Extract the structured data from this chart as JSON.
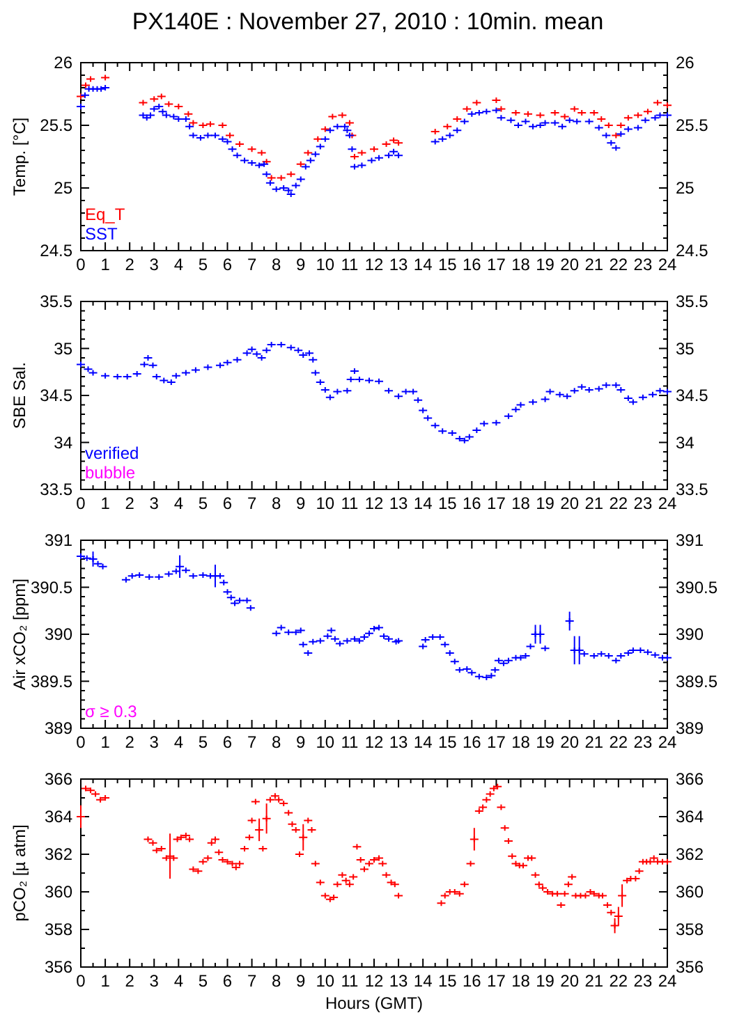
{
  "chart_data": [
    {
      "type": "scatter",
      "title": "PX140E : November 27, 2010 : 10min. mean",
      "ylabel": "Temp. [°C]",
      "xlim": [
        0,
        24
      ],
      "xticks": [
        0,
        {
          "value": 0.5,
          "label": null
        },
        1,
        {
          "value": 1.5,
          "label": null
        },
        2,
        {
          "value": 2.5,
          "label": null
        },
        3,
        {
          "value": 3.5,
          "label": null
        },
        4,
        {
          "value": 4.5,
          "label": null
        },
        5,
        {
          "value": 5.5,
          "label": null
        },
        6,
        {
          "value": 6.5,
          "label": null
        },
        7,
        {
          "value": 7.5,
          "label": null
        },
        8,
        {
          "value": 8.5,
          "label": null
        },
        9,
        {
          "value": 9.5,
          "label": null
        },
        10,
        {
          "value": 10.5,
          "label": null
        },
        11,
        {
          "value": 11.5,
          "label": null
        },
        12,
        {
          "value": 12.5,
          "label": null
        },
        13,
        {
          "value": 13.5,
          "label": null
        },
        14,
        {
          "value": 14.5,
          "label": null
        },
        15,
        {
          "value": 15.5,
          "label": null
        },
        16,
        {
          "value": 16.5,
          "label": null
        },
        17,
        {
          "value": 17.5,
          "label": null
        },
        18,
        {
          "value": 18.5,
          "label": null
        },
        19,
        {
          "value": 19.5,
          "label": null
        },
        20,
        {
          "value": 20.5,
          "label": null
        },
        21,
        {
          "value": 21.5,
          "label": null
        },
        22,
        {
          "value": 22.5,
          "label": null
        },
        23,
        {
          "value": 23.5,
          "label": null
        },
        24
      ],
      "ylim": [
        24.5,
        26
      ],
      "yticks": [
        24.5,
        {
          "value": 24.6,
          "label": null
        },
        {
          "value": 24.7,
          "label": null
        },
        {
          "value": 24.8,
          "label": null
        },
        {
          "value": 24.9,
          "label": null
        },
        25,
        {
          "value": 25.1,
          "label": null
        },
        {
          "value": 25.2,
          "label": null
        },
        {
          "value": 25.3,
          "label": null
        },
        {
          "value": 25.4,
          "label": null
        },
        25.5,
        {
          "value": 25.6,
          "label": null
        },
        {
          "value": 25.7,
          "label": null
        },
        {
          "value": 25.8,
          "label": null
        },
        {
          "value": 25.9,
          "label": null
        },
        26
      ],
      "y2lim": [
        24.5,
        26
      ],
      "y2ticks": [
        24.5,
        25,
        25.5,
        26
      ],
      "marker": "cross",
      "legend": "bottom left",
      "series": [
        {
          "name": "Eq_T",
          "color": "#ff0000",
          "x": [
            0,
            0.2,
            0.4,
            1,
            2.55,
            3,
            3.3,
            3.6,
            4,
            4.4,
            4.6,
            5,
            5.3,
            5.8,
            6.1,
            6.5,
            7,
            7.4,
            7.6,
            7.8,
            8.2,
            8.6,
            9,
            9.3,
            9.7,
            10,
            10.3,
            10.7,
            11,
            11.1,
            11.2,
            11.5,
            12,
            12.5,
            12.8,
            13,
            14.5,
            15,
            15.4,
            15.8,
            16.2,
            17,
            17.2,
            17.8,
            18.3,
            18.8,
            19.4,
            19.8,
            20.2,
            20.5,
            21,
            21.3,
            21.6,
            21.9,
            22.1,
            22.4,
            22.8,
            23.2,
            23.6,
            24
          ],
          "values": [
            25.73,
            25.82,
            25.87,
            25.88,
            25.68,
            25.71,
            25.73,
            25.67,
            25.65,
            25.59,
            25.52,
            25.5,
            25.51,
            25.5,
            25.42,
            25.35,
            25.31,
            25.28,
            25.21,
            25.08,
            25.08,
            25.11,
            25.19,
            25.28,
            25.39,
            25.47,
            25.57,
            25.58,
            25.52,
            25.42,
            25.25,
            25.28,
            25.31,
            25.35,
            25.38,
            25.36,
            25.45,
            25.49,
            25.55,
            25.63,
            25.68,
            25.7,
            25.63,
            25.6,
            25.59,
            25.58,
            25.6,
            25.57,
            25.63,
            25.6,
            25.6,
            25.55,
            25.5,
            25.42,
            25.5,
            25.56,
            25.58,
            25.61,
            25.68,
            25.66
          ]
        },
        {
          "name": "SST",
          "color": "#0000ff",
          "x": [
            0,
            0.17,
            0.33,
            0.5,
            0.67,
            0.83,
            1,
            2.55,
            2.7,
            2.85,
            3,
            3.2,
            3.35,
            3.5,
            3.8,
            4,
            4.3,
            4.45,
            4.6,
            4.9,
            5.2,
            5.5,
            5.8,
            6,
            6.2,
            6.4,
            6.7,
            7,
            7.3,
            7.5,
            7.6,
            7.75,
            8,
            8.3,
            8.5,
            8.6,
            8.8,
            9,
            9.2,
            9.4,
            9.6,
            9.8,
            10,
            10.2,
            10.5,
            10.8,
            10.9,
            11,
            11.1,
            11.2,
            11.5,
            11.9,
            12.2,
            12.6,
            12.8,
            13,
            14.5,
            14.8,
            15.1,
            15.4,
            15.7,
            16,
            16.3,
            16.6,
            17,
            17.2,
            17.6,
            17.9,
            18.2,
            18.5,
            18.8,
            19,
            19.4,
            19.7,
            20,
            20.3,
            20.8,
            21.2,
            21.5,
            21.7,
            21.9,
            22.1,
            22.4,
            22.8,
            23.1,
            23.5,
            23.7,
            24
          ],
          "values": [
            25.65,
            25.74,
            25.79,
            25.79,
            25.79,
            25.79,
            25.8,
            25.58,
            25.56,
            25.58,
            25.63,
            25.65,
            25.61,
            25.58,
            25.57,
            25.55,
            25.55,
            25.49,
            25.42,
            25.4,
            25.42,
            25.42,
            25.39,
            25.37,
            25.31,
            25.26,
            25.22,
            25.2,
            25.18,
            25.19,
            25.11,
            25.04,
            24.99,
            25,
            24.98,
            24.95,
            25.02,
            25.07,
            25.17,
            25.22,
            25.27,
            25.33,
            25.39,
            25.46,
            25.49,
            25.49,
            25.46,
            25.42,
            25.31,
            25.17,
            25.18,
            25.22,
            25.24,
            25.26,
            25.29,
            25.26,
            25.37,
            25.39,
            25.42,
            25.46,
            25.53,
            25.59,
            25.6,
            25.61,
            25.62,
            25.56,
            25.54,
            25.5,
            25.53,
            25.49,
            25.5,
            25.52,
            25.52,
            25.49,
            25.54,
            25.53,
            25.53,
            25.48,
            25.42,
            25.36,
            25.32,
            25.43,
            25.47,
            25.48,
            25.54,
            25.56,
            25.58,
            25.58
          ]
        }
      ]
    },
    {
      "type": "scatter",
      "ylabel": "SBE Sal.",
      "xlim": [
        0,
        24
      ],
      "xticks": [
        0,
        {
          "value": 0.5,
          "label": null
        },
        1,
        {
          "value": 1.5,
          "label": null
        },
        2,
        {
          "value": 2.5,
          "label": null
        },
        3,
        {
          "value": 3.5,
          "label": null
        },
        4,
        {
          "value": 4.5,
          "label": null
        },
        5,
        {
          "value": 5.5,
          "label": null
        },
        6,
        {
          "value": 6.5,
          "label": null
        },
        7,
        {
          "value": 7.5,
          "label": null
        },
        8,
        {
          "value": 8.5,
          "label": null
        },
        9,
        {
          "value": 9.5,
          "label": null
        },
        10,
        {
          "value": 10.5,
          "label": null
        },
        11,
        {
          "value": 11.5,
          "label": null
        },
        12,
        {
          "value": 12.5,
          "label": null
        },
        13,
        {
          "value": 13.5,
          "label": null
        },
        14,
        {
          "value": 14.5,
          "label": null
        },
        15,
        {
          "value": 15.5,
          "label": null
        },
        16,
        {
          "value": 16.5,
          "label": null
        },
        17,
        {
          "value": 17.5,
          "label": null
        },
        18,
        {
          "value": 18.5,
          "label": null
        },
        19,
        {
          "value": 19.5,
          "label": null
        },
        20,
        {
          "value": 20.5,
          "label": null
        },
        21,
        {
          "value": 21.5,
          "label": null
        },
        22,
        {
          "value": 22.5,
          "label": null
        },
        23,
        {
          "value": 23.5,
          "label": null
        },
        24
      ],
      "ylim": [
        33.5,
        35.5
      ],
      "yticks": [
        33.5,
        {
          "value": 33.6,
          "label": null
        },
        {
          "value": 33.7,
          "label": null
        },
        {
          "value": 33.8,
          "label": null
        },
        {
          "value": 33.9,
          "label": null
        },
        34,
        {
          "value": 34.1,
          "label": null
        },
        {
          "value": 34.2,
          "label": null
        },
        {
          "value": 34.3,
          "label": null
        },
        {
          "value": 34.4,
          "label": null
        },
        34.5,
        {
          "value": 34.6,
          "label": null
        },
        {
          "value": 34.7,
          "label": null
        },
        {
          "value": 34.8,
          "label": null
        },
        {
          "value": 34.9,
          "label": null
        },
        35,
        {
          "value": 35.1,
          "label": null
        },
        {
          "value": 35.2,
          "label": null
        },
        {
          "value": 35.3,
          "label": null
        },
        {
          "value": 35.4,
          "label": null
        },
        35.5
      ],
      "y2lim": [
        33.5,
        35.5
      ],
      "y2ticks": [
        33.5,
        34,
        34.5,
        35,
        35.5
      ],
      "marker": "cross",
      "legend": "bottom left",
      "series": [
        {
          "name": "verified",
          "color": "#0000ff",
          "x": [
            0,
            0.3,
            0.5,
            1,
            1.5,
            1.9,
            2.3,
            2.6,
            2.75,
            2.95,
            3.1,
            3.4,
            3.7,
            3.9,
            4.3,
            4.7,
            5.2,
            5.7,
            6,
            6.4,
            6.8,
            7,
            7.2,
            7.4,
            7.6,
            7.8,
            8.2,
            8.6,
            8.9,
            9.1,
            9.35,
            9.5,
            9.6,
            9.8,
            10,
            10.2,
            10.5,
            10.9,
            11.05,
            11.2,
            11.4,
            11.8,
            12.2,
            12.6,
            13,
            13.3,
            13.6,
            13.8,
            14,
            14.2,
            14.5,
            14.8,
            15.2,
            15.5,
            15.7,
            15.9,
            16.2,
            16.5,
            17,
            17.5,
            17.8,
            18,
            18.5,
            19,
            19.2,
            19.6,
            19.9,
            20.2,
            20.5,
            20.8,
            21.2,
            21.5,
            21.9,
            22.1,
            22.4,
            22.6,
            23,
            23.4,
            23.7,
            24
          ],
          "values": [
            34.83,
            34.78,
            34.74,
            34.71,
            34.7,
            34.7,
            34.73,
            34.83,
            34.9,
            34.82,
            34.7,
            34.66,
            34.64,
            34.71,
            34.74,
            34.77,
            34.8,
            34.82,
            34.85,
            34.88,
            34.95,
            34.99,
            34.94,
            34.9,
            34.98,
            35.04,
            35.04,
            35.01,
            34.98,
            34.93,
            34.95,
            34.88,
            34.74,
            34.64,
            34.56,
            34.48,
            34.54,
            34.55,
            34.67,
            34.76,
            34.67,
            34.66,
            34.65,
            34.55,
            34.49,
            34.54,
            34.54,
            34.45,
            34.34,
            34.26,
            34.18,
            34.12,
            34.1,
            34.04,
            34.02,
            34.06,
            34.13,
            34.2,
            34.21,
            34.28,
            34.35,
            34.4,
            34.43,
            34.46,
            34.54,
            34.51,
            34.49,
            34.55,
            34.59,
            34.56,
            34.57,
            34.61,
            34.61,
            34.56,
            34.47,
            34.43,
            34.48,
            34.51,
            34.55,
            34.54
          ]
        },
        {
          "name": "bubble",
          "color": "#ff00ff"
        }
      ]
    },
    {
      "type": "scatter",
      "ylabel": "Air xCO₂ [ppm]",
      "xlim": [
        0,
        24
      ],
      "xticks": [
        0,
        {
          "value": 0.5,
          "label": null
        },
        1,
        {
          "value": 1.5,
          "label": null
        },
        2,
        {
          "value": 2.5,
          "label": null
        },
        3,
        {
          "value": 3.5,
          "label": null
        },
        4,
        {
          "value": 4.5,
          "label": null
        },
        5,
        {
          "value": 5.5,
          "label": null
        },
        6,
        {
          "value": 6.5,
          "label": null
        },
        7,
        {
          "value": 7.5,
          "label": null
        },
        8,
        {
          "value": 8.5,
          "label": null
        },
        9,
        {
          "value": 9.5,
          "label": null
        },
        10,
        {
          "value": 10.5,
          "label": null
        },
        11,
        {
          "value": 11.5,
          "label": null
        },
        12,
        {
          "value": 12.5,
          "label": null
        },
        13,
        {
          "value": 13.5,
          "label": null
        },
        14,
        {
          "value": 14.5,
          "label": null
        },
        15,
        {
          "value": 15.5,
          "label": null
        },
        16,
        {
          "value": 16.5,
          "label": null
        },
        17,
        {
          "value": 17.5,
          "label": null
        },
        18,
        {
          "value": 18.5,
          "label": null
        },
        19,
        {
          "value": 19.5,
          "label": null
        },
        20,
        {
          "value": 20.5,
          "label": null
        },
        21,
        {
          "value": 21.5,
          "label": null
        },
        22,
        {
          "value": 22.5,
          "label": null
        },
        23,
        {
          "value": 23.5,
          "label": null
        },
        24
      ],
      "ylim": [
        389,
        391
      ],
      "yticks": [
        389,
        {
          "value": 389.1,
          "label": null
        },
        {
          "value": 389.2,
          "label": null
        },
        {
          "value": 389.3,
          "label": null
        },
        {
          "value": 389.4,
          "label": null
        },
        389.5,
        {
          "value": 389.6,
          "label": null
        },
        {
          "value": 389.7,
          "label": null
        },
        {
          "value": 389.8,
          "label": null
        },
        {
          "value": 389.9,
          "label": null
        },
        390,
        {
          "value": 390.1,
          "label": null
        },
        {
          "value": 390.2,
          "label": null
        },
        {
          "value": 390.3,
          "label": null
        },
        {
          "value": 390.4,
          "label": null
        },
        390.5,
        {
          "value": 390.6,
          "label": null
        },
        {
          "value": 390.7,
          "label": null
        },
        {
          "value": 390.8,
          "label": null
        },
        {
          "value": 390.9,
          "label": null
        },
        391
      ],
      "y2lim": [
        389,
        391
      ],
      "y2ticks": [
        389,
        389.5,
        390,
        390.5,
        391
      ],
      "marker": "cross",
      "series": [
        {
          "color": "#0000ff",
          "x": [
            0,
            0.25,
            0.5,
            0.7,
            0.9,
            1.85,
            2.1,
            2.4,
            2.8,
            3.2,
            3.6,
            3.9,
            4.05,
            4.3,
            4.6,
            5,
            5.3,
            5.5,
            5.7,
            5.85,
            6,
            6.15,
            6.3,
            6.5,
            6.8,
            6.95,
            8,
            8.2,
            8.5,
            8.8,
            9,
            9.1,
            9.3,
            9.5,
            9.8,
            10.1,
            10.25,
            10.4,
            10.6,
            10.9,
            11.2,
            11.4,
            11.6,
            11.8,
            12,
            12.2,
            12.4,
            12.6,
            12.9,
            13,
            14,
            14.1,
            14.4,
            14.7,
            14.9,
            15.1,
            15.3,
            15.5,
            15.8,
            16,
            16.3,
            16.6,
            16.8,
            16.95,
            17.1,
            17.3,
            17.5,
            17.8,
            18,
            18.2,
            18.4,
            18.6,
            18.8,
            19,
            20,
            20.2,
            20.4,
            20.6,
            21,
            21.3,
            21.6,
            21.9,
            22.1,
            22.4,
            22.6,
            22.9,
            23.2,
            23.5,
            23.8,
            24
          ],
          "values": [
            390.83,
            390.81,
            390.8,
            390.75,
            390.72,
            390.58,
            390.62,
            390.63,
            390.61,
            390.61,
            390.64,
            390.67,
            390.72,
            390.68,
            390.62,
            390.63,
            390.62,
            390.62,
            390.62,
            390.55,
            390.45,
            390.39,
            390.33,
            390.36,
            390.36,
            390.28,
            390.01,
            390.07,
            390.02,
            390.02,
            390.04,
            389.89,
            389.8,
            389.92,
            389.93,
            389.98,
            390.04,
            389.95,
            389.9,
            389.93,
            389.95,
            389.93,
            389.97,
            390.01,
            390.06,
            390.07,
            389.98,
            389.95,
            389.92,
            389.93,
            389.87,
            389.94,
            389.97,
            389.97,
            389.89,
            389.8,
            389.71,
            389.62,
            389.63,
            389.59,
            389.55,
            389.54,
            389.56,
            389.62,
            389.72,
            389.69,
            389.72,
            389.75,
            389.75,
            389.77,
            389.87,
            390,
            390,
            389.85,
            390.14,
            389.83,
            389.83,
            389.79,
            389.77,
            389.79,
            389.77,
            389.72,
            389.77,
            389.8,
            389.83,
            389.83,
            389.81,
            389.78,
            389.75,
            389.75
          ],
          "errors": [
            null,
            null,
            0.08,
            null,
            null,
            null,
            null,
            null,
            null,
            null,
            null,
            null,
            0.12,
            null,
            null,
            null,
            null,
            0.12,
            null,
            null,
            null,
            null,
            null,
            null,
            null,
            null,
            null,
            null,
            null,
            null,
            null,
            null,
            null,
            null,
            null,
            null,
            null,
            null,
            null,
            null,
            null,
            null,
            null,
            null,
            null,
            null,
            null,
            null,
            null,
            null,
            null,
            null,
            null,
            null,
            null,
            null,
            null,
            null,
            null,
            null,
            null,
            null,
            null,
            null,
            null,
            null,
            null,
            null,
            null,
            null,
            null,
            0.1,
            0.1,
            null,
            0.1,
            0.15,
            0.15,
            null,
            null,
            null,
            null,
            null,
            null,
            null,
            null,
            null,
            null,
            null,
            null,
            null
          ]
        }
      ],
      "annotations": [
        "σ ≥ 0.3"
      ]
    },
    {
      "type": "scatter",
      "ylabel": "pCO₂ [µ atm]",
      "xlabel": "Hours (GMT)",
      "xlim": [
        0,
        24
      ],
      "xticks": [
        0,
        {
          "value": 0.5,
          "label": null
        },
        1,
        {
          "value": 1.5,
          "label": null
        },
        2,
        {
          "value": 2.5,
          "label": null
        },
        3,
        {
          "value": 3.5,
          "label": null
        },
        4,
        {
          "value": 4.5,
          "label": null
        },
        5,
        {
          "value": 5.5,
          "label": null
        },
        6,
        {
          "value": 6.5,
          "label": null
        },
        7,
        {
          "value": 7.5,
          "label": null
        },
        8,
        {
          "value": 8.5,
          "label": null
        },
        9,
        {
          "value": 9.5,
          "label": null
        },
        10,
        {
          "value": 10.5,
          "label": null
        },
        11,
        {
          "value": 11.5,
          "label": null
        },
        12,
        {
          "value": 12.5,
          "label": null
        },
        13,
        {
          "value": 13.5,
          "label": null
        },
        14,
        {
          "value": 14.5,
          "label": null
        },
        15,
        {
          "value": 15.5,
          "label": null
        },
        16,
        {
          "value": 16.5,
          "label": null
        },
        17,
        {
          "value": 17.5,
          "label": null
        },
        18,
        {
          "value": 18.5,
          "label": null
        },
        19,
        {
          "value": 19.5,
          "label": null
        },
        20,
        {
          "value": 20.5,
          "label": null
        },
        21,
        {
          "value": 21.5,
          "label": null
        },
        22,
        {
          "value": 22.5,
          "label": null
        },
        23,
        {
          "value": 23.5,
          "label": null
        },
        24
      ],
      "ylim": [
        356,
        366
      ],
      "yticks": [
        356,
        {
          "value": 357,
          "label": null
        },
        358,
        {
          "value": 359,
          "label": null
        },
        360,
        {
          "value": 361,
          "label": null
        },
        362,
        {
          "value": 363,
          "label": null
        },
        364,
        {
          "value": 365,
          "label": null
        },
        366
      ],
      "y2lim": [
        356,
        366
      ],
      "y2ticks": [
        356,
        358,
        360,
        362,
        364,
        366
      ],
      "marker": "cross",
      "series": [
        {
          "color": "#ff0000",
          "x": [
            0,
            0.2,
            0.4,
            0.6,
            0.8,
            1,
            2.75,
            2.95,
            3.1,
            3.3,
            3.5,
            3.65,
            3.8,
            3.95,
            4.1,
            4.3,
            4.45,
            4.6,
            4.8,
            5,
            5.2,
            5.35,
            5.5,
            5.65,
            5.8,
            6,
            6.2,
            6.35,
            6.5,
            6.7,
            6.9,
            7,
            7.15,
            7.3,
            7.45,
            7.6,
            7.75,
            7.95,
            8.1,
            8.3,
            8.5,
            8.65,
            8.8,
            8.95,
            9.1,
            9.3,
            9.45,
            9.6,
            9.8,
            10,
            10.2,
            10.35,
            10.5,
            10.7,
            10.85,
            11,
            11.15,
            11.3,
            11.45,
            11.6,
            11.8,
            12,
            12.2,
            12.35,
            12.5,
            12.7,
            12.85,
            13,
            14.75,
            14.9,
            15.1,
            15.3,
            15.5,
            15.7,
            15.95,
            16.1,
            16.3,
            16.45,
            16.6,
            16.75,
            16.9,
            17.05,
            17.2,
            17.35,
            17.5,
            17.65,
            17.8,
            17.95,
            18.1,
            18.3,
            18.45,
            18.6,
            18.75,
            18.9,
            19.1,
            19.3,
            19.5,
            19.65,
            19.8,
            19.95,
            20.1,
            20.25,
            20.45,
            20.65,
            20.85,
            21,
            21.2,
            21.35,
            21.55,
            21.7,
            21.85,
            22,
            22.15,
            22.35,
            22.5,
            22.7,
            22.85,
            23,
            23.15,
            23.3,
            23.45,
            23.6,
            23.8,
            24
          ],
          "values": [
            364,
            365.5,
            365.4,
            365.2,
            364.9,
            365,
            362.8,
            362.6,
            362.2,
            362.3,
            361.8,
            361.9,
            361.8,
            362.8,
            362.9,
            363,
            362.8,
            361.2,
            361.1,
            361.6,
            361.8,
            362.6,
            362.8,
            362.1,
            361.7,
            361.6,
            361.5,
            361.3,
            361.5,
            362.3,
            362.9,
            363.8,
            364.8,
            363.3,
            362.3,
            363.9,
            364.9,
            365.1,
            364.9,
            364.7,
            364.2,
            363.6,
            363.3,
            362,
            362.9,
            363.8,
            363.3,
            361.5,
            360.5,
            359.8,
            359.6,
            359.7,
            360.4,
            360.9,
            360.6,
            360.4,
            360.8,
            362.4,
            361.7,
            361.2,
            361.5,
            361.7,
            361.8,
            361.5,
            360.9,
            360.5,
            360.4,
            359.8,
            359.4,
            359.8,
            360,
            360,
            359.9,
            360.4,
            361.5,
            362.8,
            364.3,
            364.5,
            364.9,
            365.2,
            365.5,
            365.6,
            364.5,
            363.4,
            362.7,
            361.9,
            361.5,
            361.4,
            361.4,
            361.8,
            361.8,
            360.9,
            360.4,
            360.2,
            360,
            359.9,
            359.9,
            359.3,
            359.9,
            360.4,
            360.8,
            359.8,
            359.8,
            359.8,
            360,
            359.9,
            359.8,
            359.8,
            359.3,
            358.9,
            358.2,
            358.7,
            359.8,
            360.6,
            360.7,
            360.7,
            361.1,
            361.6,
            361.6,
            361.6,
            361.8,
            361.6,
            361.6,
            361.6
          ],
          "errors": [
            0.6,
            null,
            null,
            null,
            null,
            null,
            null,
            null,
            null,
            null,
            null,
            1.2,
            null,
            null,
            null,
            null,
            null,
            null,
            null,
            null,
            null,
            null,
            null,
            null,
            null,
            null,
            null,
            null,
            null,
            null,
            null,
            null,
            null,
            0.6,
            null,
            0.8,
            null,
            null,
            null,
            null,
            null,
            null,
            null,
            null,
            0.7,
            null,
            null,
            null,
            null,
            null,
            null,
            null,
            null,
            null,
            null,
            null,
            null,
            null,
            null,
            null,
            null,
            null,
            null,
            null,
            null,
            null,
            null,
            null,
            null,
            null,
            null,
            null,
            null,
            null,
            null,
            0.6,
            null,
            null,
            null,
            null,
            null,
            null,
            null,
            null,
            null,
            null,
            null,
            null,
            null,
            null,
            null,
            null,
            null,
            null,
            null,
            null,
            null,
            null,
            null,
            null,
            null,
            null,
            null,
            null,
            null,
            null,
            null,
            null,
            null,
            null,
            0.4,
            0.5,
            0.6,
            null,
            null,
            null,
            null,
            null,
            null,
            null,
            null,
            null,
            null,
            null
          ]
        }
      ]
    }
  ]
}
